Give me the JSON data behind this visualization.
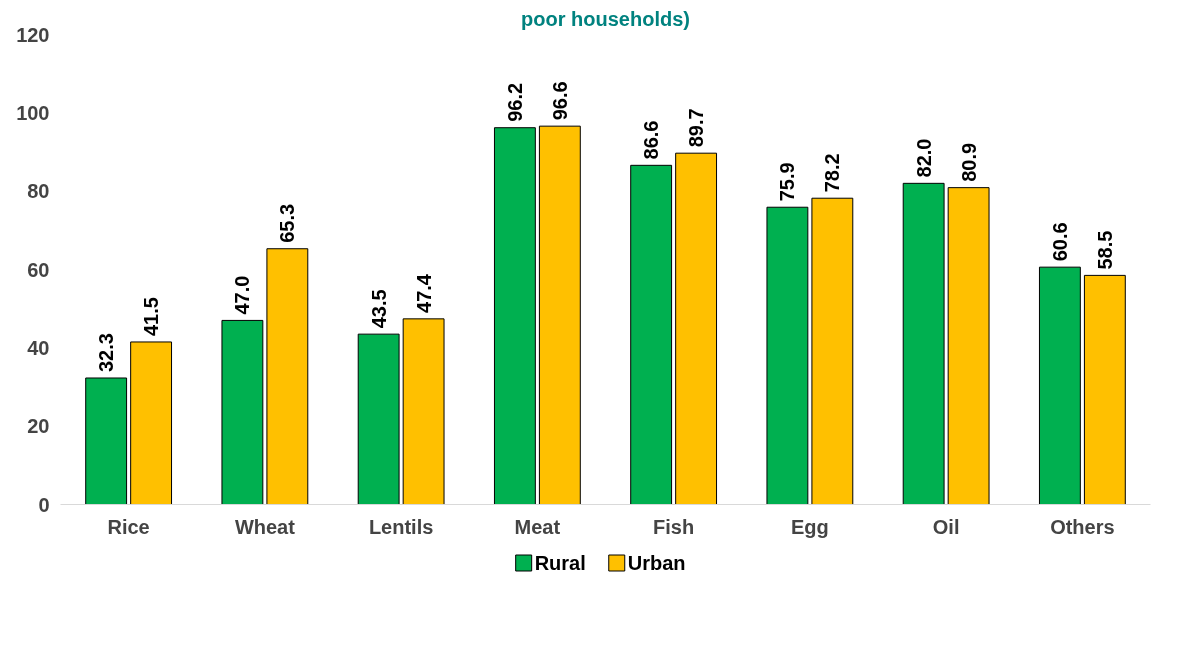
{
  "chart_data": {
    "type": "bar",
    "title": "poor households)",
    "categories": [
      "Rice",
      "Wheat",
      "Lentils",
      "Meat",
      "Fish",
      "Egg",
      "Oil",
      "Others"
    ],
    "series": [
      {
        "name": "Rural",
        "color": "#00b050",
        "values": [
          32.3,
          47.0,
          43.5,
          96.2,
          86.6,
          75.9,
          82.0,
          60.6
        ]
      },
      {
        "name": "Urban",
        "color": "#ffc000",
        "values": [
          41.5,
          65.3,
          47.4,
          96.6,
          89.7,
          78.2,
          80.9,
          58.5
        ]
      }
    ],
    "value_labels": [
      [
        "32.3",
        "47.0",
        "43.5",
        "96.2",
        "86.6",
        "75.9",
        "82.0",
        "60.6"
      ],
      [
        "41.5",
        "65.3",
        "47.4",
        "96.6",
        "89.7",
        "78.2",
        "80.9",
        "58.5"
      ]
    ],
    "ylim": [
      0,
      120
    ],
    "yticks": [
      0,
      20,
      40,
      60,
      80,
      100,
      120
    ],
    "grid": false,
    "legend": "bottom"
  }
}
